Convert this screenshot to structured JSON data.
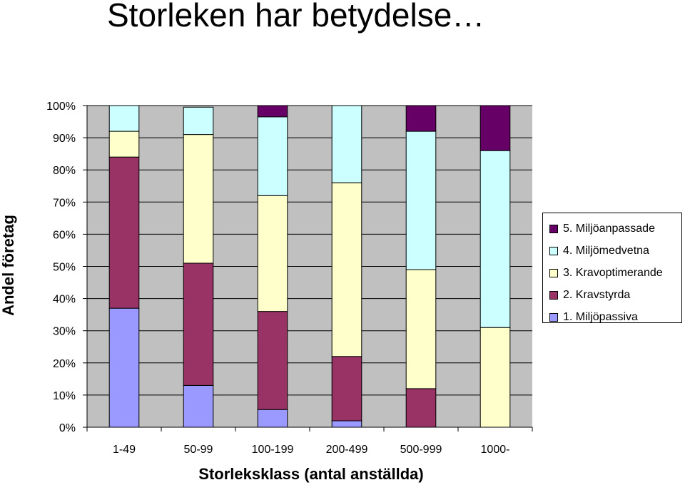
{
  "chart_data": {
    "type": "bar",
    "stacked": true,
    "title": "Storleken har betydelse…",
    "xlabel": "Storleksklass (antal anställda)",
    "ylabel": "Andel företag",
    "ylim": [
      0,
      100
    ],
    "y_ticks": [
      "0%",
      "10%",
      "20%",
      "30%",
      "40%",
      "50%",
      "60%",
      "70%",
      "80%",
      "90%",
      "100%"
    ],
    "grid": true,
    "legend_position": "right",
    "categories": [
      "1-49",
      "50-99",
      "100-199",
      "200-499",
      "500-999",
      "1000-"
    ],
    "series": [
      {
        "name": "1. Miljöpassiva",
        "color": "#9999ff",
        "values": [
          37,
          13,
          5.5,
          2,
          0,
          0
        ]
      },
      {
        "name": "2. Kravstyrda",
        "color": "#993366",
        "values": [
          47,
          38,
          30.5,
          20,
          12,
          0
        ]
      },
      {
        "name": "3. Kravoptimerande",
        "color": "#ffffcc",
        "values": [
          8,
          40,
          36,
          54,
          37,
          31
        ]
      },
      {
        "name": "4. Miljömedvetna",
        "color": "#ccffff",
        "values": [
          8,
          8.5,
          24.5,
          24,
          43,
          55
        ]
      },
      {
        "name": "5. Miljöanpassade",
        "color": "#660066",
        "values": [
          0,
          0,
          3.5,
          0,
          8,
          14
        ]
      }
    ],
    "legend_order": [
      4,
      3,
      2,
      1,
      0
    ],
    "plot_background": "#c0c0c0"
  }
}
